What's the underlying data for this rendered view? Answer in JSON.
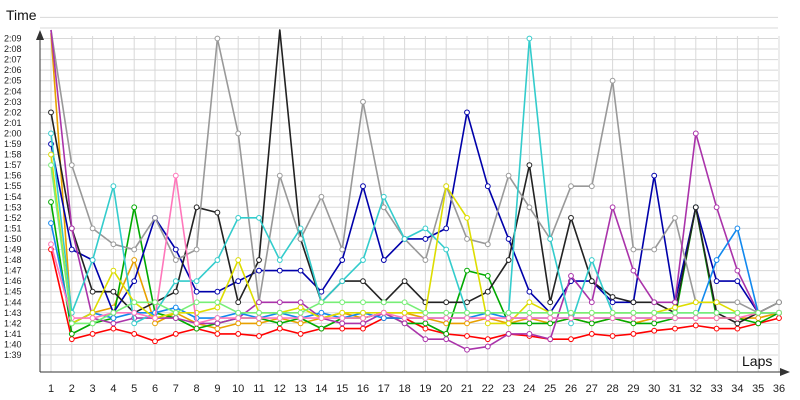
{
  "chart_data": {
    "type": "line",
    "title": "",
    "xlabel": "Laps",
    "ylabel": "Time",
    "x": [
      1,
      2,
      3,
      4,
      5,
      6,
      7,
      8,
      9,
      10,
      11,
      12,
      13,
      14,
      15,
      16,
      17,
      18,
      19,
      20,
      21,
      22,
      23,
      24,
      25,
      26,
      27,
      28,
      29,
      30,
      31,
      32,
      33,
      34,
      35,
      36
    ],
    "x_tick_labels": [
      "1",
      "2",
      "3",
      "4",
      "5",
      "6",
      "7",
      "8",
      "9",
      "10",
      "11",
      "12",
      "13",
      "14",
      "15",
      "16",
      "17",
      "18",
      "19",
      "20",
      "21",
      "22",
      "23",
      "24",
      "25",
      "26",
      "27",
      "28",
      "29",
      "30",
      "31",
      "32",
      "33",
      "34",
      "35",
      "36"
    ],
    "y_tick_labels": [
      "1:39",
      "1:40",
      "1:41",
      "1:42",
      "1:43",
      "1:44",
      "1:45",
      "1:46",
      "1:47",
      "1:48",
      "1:49",
      "1:50",
      "1:51",
      "1:52",
      "1:53",
      "1:54",
      "1:55",
      "1:56",
      "1:57",
      "1:58",
      "1:59",
      "2:00",
      "2:01",
      "2:02",
      "2:03",
      "2:04",
      "2:05",
      "2:06",
      "2:07",
      "2:08",
      "2:09"
    ],
    "y_unit": "seconds",
    "ylim": [
      99,
      131
    ],
    "grid": true,
    "legend": "none",
    "series": [
      {
        "color": "#ff0000",
        "values": [
          109,
          100.5,
          101,
          101.5,
          101,
          100.3,
          101,
          101.5,
          101,
          101,
          100.8,
          101.5,
          101,
          101.5,
          101.5,
          101.5,
          102.5,
          102.5,
          101.5,
          101,
          100.8,
          100.5,
          101,
          100.8,
          100.5,
          100.5,
          101,
          100.8,
          101,
          101.3,
          101.5,
          101.8,
          101.5,
          101.5,
          102,
          102.5
        ]
      },
      {
        "color": "#e8a000",
        "values": [
          129.5,
          102,
          103,
          103.5,
          108,
          102,
          103,
          102,
          101.5,
          102,
          102,
          102.5,
          102,
          102.5,
          103,
          102.5,
          103,
          103,
          102.5,
          102,
          102,
          102.5,
          102,
          102.5,
          102,
          102.5,
          102,
          102.5,
          102,
          102.5,
          102.5,
          102.5,
          102.5,
          102.5,
          102.5,
          103
        ]
      },
      {
        "color": "#00aa00",
        "values": [
          113.5,
          101,
          102,
          102.5,
          113,
          103,
          102.5,
          101.5,
          102,
          102.5,
          102.5,
          102,
          102.5,
          101.5,
          102.5,
          102.5,
          103,
          102,
          102,
          101,
          107,
          106.5,
          102,
          102,
          102,
          102.5,
          102,
          102.5,
          102,
          102,
          102.5,
          113,
          102.5,
          102.5,
          102,
          103
        ]
      },
      {
        "color": "#0000aa",
        "values": [
          119,
          109,
          108,
          103,
          106,
          112,
          109,
          105,
          105,
          106,
          107,
          107,
          107,
          105,
          108,
          115,
          108,
          110,
          110,
          111,
          122,
          115,
          110,
          105,
          103,
          106,
          106,
          104,
          104,
          116,
          104,
          113,
          106,
          106,
          103,
          103
        ]
      },
      {
        "color": "#222222",
        "values": [
          122,
          111,
          105,
          105,
          103,
          104,
          105,
          113,
          112.5,
          104,
          108,
          130,
          110,
          104,
          106,
          106,
          104,
          106,
          104,
          104,
          104,
          105,
          108,
          117,
          104,
          112,
          106,
          104.5,
          104,
          104,
          103,
          113,
          103,
          102,
          103,
          104
        ]
      },
      {
        "color": "#999999",
        "values": [
          131,
          117,
          111,
          109.5,
          109,
          112,
          108,
          109,
          129,
          120,
          104,
          116,
          110,
          114,
          109,
          123,
          113,
          110,
          108,
          115,
          110,
          109.5,
          116,
          113,
          110,
          115,
          115,
          125,
          109,
          109,
          112,
          104,
          104,
          104,
          103,
          104
        ]
      },
      {
        "color": "#aa33aa",
        "values": [
          131,
          111,
          102.5,
          102,
          102.5,
          102.5,
          102.5,
          102,
          102,
          102.5,
          104,
          104,
          104,
          102.5,
          102,
          102,
          103,
          102,
          100.5,
          100.5,
          99.5,
          99.8,
          101,
          101,
          100.5,
          106.5,
          104,
          113,
          107,
          104,
          104,
          120,
          113,
          107,
          103,
          103
        ]
      },
      {
        "color": "#33cccc",
        "values": [
          120,
          103,
          108,
          115,
          102,
          103,
          106,
          106,
          108,
          112,
          112,
          108,
          111,
          104,
          106,
          108,
          114,
          110,
          111,
          109,
          103,
          103,
          103,
          129,
          110,
          102,
          108,
          103,
          103,
          103,
          103,
          103,
          103,
          103,
          103,
          103
        ]
      },
      {
        "color": "#1188ee",
        "values": [
          111.5,
          102,
          103,
          102.5,
          103,
          103,
          103.5,
          102.5,
          102.5,
          103,
          102.5,
          103,
          102.5,
          103,
          102.5,
          103,
          102.5,
          102.5,
          102.5,
          102.5,
          102.5,
          103,
          102.5,
          102.5,
          102.5,
          102.5,
          102.5,
          102.5,
          102.5,
          102.5,
          102.5,
          102.5,
          108,
          111,
          103,
          103
        ]
      },
      {
        "color": "#dddd00",
        "values": [
          118,
          102,
          103,
          107,
          104,
          102.5,
          103,
          103,
          103.5,
          108,
          103,
          103,
          103.5,
          102.5,
          103,
          103,
          103,
          103,
          103,
          115,
          112,
          102,
          102,
          104,
          103,
          103,
          103,
          103,
          103,
          103,
          103.5,
          104,
          104,
          103,
          103,
          103
        ]
      },
      {
        "color": "#ff77bb",
        "values": [
          109.5,
          102.5,
          102.5,
          103,
          103,
          102.5,
          116,
          102,
          102.5,
          102.5,
          102.5,
          102.5,
          102.5,
          102.5,
          102.5,
          102.5,
          103,
          102.5,
          102.5,
          102.5,
          102.5,
          102.5,
          102.5,
          102.5,
          102.5,
          102.5,
          102.5,
          102.5,
          102.5,
          102.5,
          102.5,
          102.5,
          102.5,
          102.5,
          103,
          103
        ]
      },
      {
        "color": "#77ee77",
        "values": [
          117,
          102,
          102,
          103,
          104,
          104,
          103,
          104,
          104,
          103,
          103,
          103,
          103,
          104,
          104,
          104,
          104,
          104,
          103,
          103,
          103,
          103,
          103,
          103,
          103,
          103,
          103,
          103,
          103,
          103,
          103,
          103,
          103,
          103,
          103,
          103
        ]
      }
    ]
  }
}
